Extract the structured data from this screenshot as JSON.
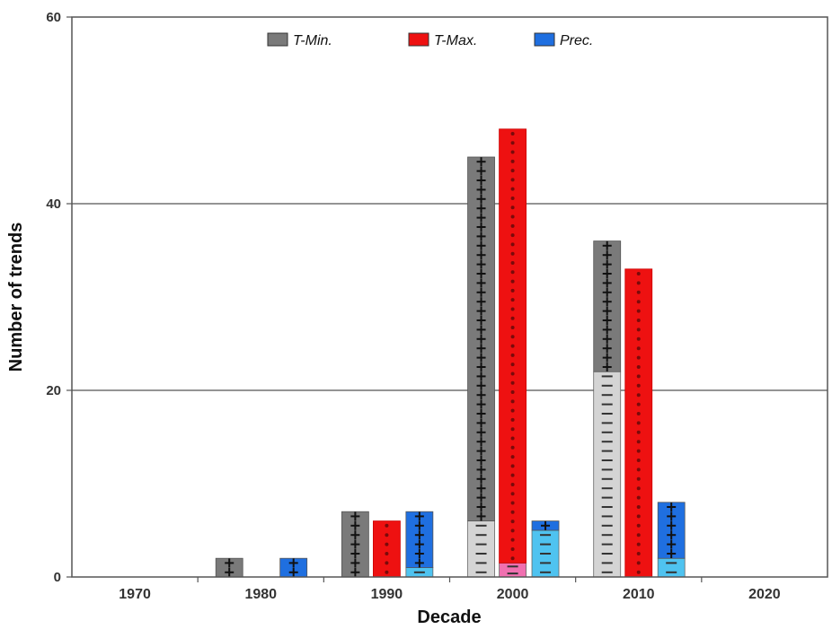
{
  "chart_data": {
    "type": "bar",
    "title": "",
    "xlabel": "Decade",
    "ylabel": "Number of trends",
    "ylim": [
      0,
      60
    ],
    "yticks": [
      0,
      20,
      40,
      60
    ],
    "grid": "horizontal at 20 and 40",
    "legend_position": "top-center",
    "categories": [
      "1970",
      "1980",
      "1990",
      "2000",
      "2010",
      "2020"
    ],
    "series": [
      {
        "name": "T-Min.",
        "color": "#7a7a7a",
        "negative_color": "#d4d4d4",
        "values": [
          0,
          2,
          7,
          45,
          36,
          0
        ],
        "positive": [
          0,
          2,
          7,
          39,
          14,
          0
        ],
        "negative": [
          0,
          0,
          0,
          6,
          22,
          0
        ]
      },
      {
        "name": "T-Max.",
        "color": "#ee1111",
        "negative_color": "#f070b0",
        "values": [
          0,
          0,
          6,
          48,
          33,
          0
        ],
        "positive": [
          0,
          0,
          6,
          46.5,
          33,
          0
        ],
        "negative": [
          0,
          0,
          0,
          1.5,
          0,
          0
        ]
      },
      {
        "name": "Prec.",
        "color": "#1f6fe0",
        "negative_color": "#4fc3f0",
        "values": [
          0,
          2,
          7,
          6,
          8,
          0
        ],
        "positive": [
          0,
          2,
          6,
          1,
          6,
          0
        ],
        "negative": [
          0,
          0,
          1,
          5,
          2,
          0
        ]
      }
    ],
    "notes": "Stacked bars: darker segment = positive trends (+), lighter segment = negative trends (−)"
  },
  "legend": {
    "items": [
      {
        "label": "T-Min.",
        "color": "#7a7a7a"
      },
      {
        "label": "T-Max.",
        "color": "#ee1111"
      },
      {
        "label": "Prec.",
        "color": "#1f6fe0"
      }
    ]
  },
  "axes": {
    "x_label": "Decade",
    "y_label": "Number of trends",
    "y_ticks": [
      "0",
      "20",
      "40",
      "60"
    ],
    "x_ticks": [
      "1970",
      "1980",
      "1990",
      "2000",
      "2010",
      "2020"
    ]
  }
}
